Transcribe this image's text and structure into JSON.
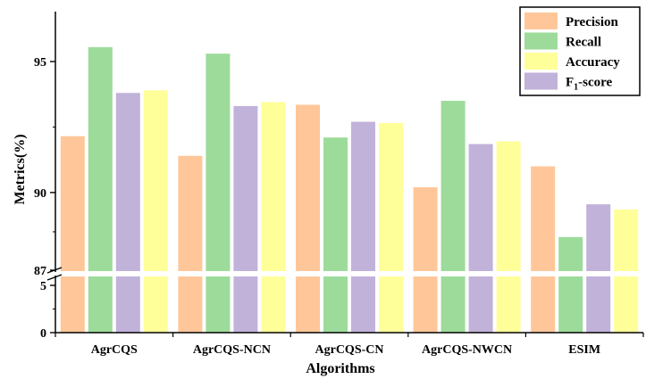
{
  "chart_data": {
    "type": "bar",
    "xlabel": "Algorithms",
    "ylabel": "Metrics(%)",
    "categories": [
      "AgrCQS",
      "AgrCQS-NCN",
      "AgrCQS-CN",
      "AgrCQS-NWCN",
      "ESIM"
    ],
    "series": [
      {
        "name": "Precision",
        "color": "#FFC799",
        "values": [
          92.15,
          91.4,
          93.35,
          90.2,
          91.0
        ]
      },
      {
        "name": "Recall",
        "color": "#9DDB9B",
        "values": [
          95.55,
          95.3,
          92.1,
          93.5,
          88.3
        ]
      },
      {
        "name": "F1-score",
        "name_main": "F",
        "name_sub": "1",
        "name_rest": "-score",
        "color": "#C1B2D9",
        "values": [
          93.8,
          93.3,
          92.7,
          91.85,
          89.55
        ]
      },
      {
        "name": "Accuracy",
        "color": "#FFFF99",
        "values": [
          93.9,
          93.45,
          92.65,
          91.95,
          89.35
        ]
      }
    ],
    "legend_order": [
      "Precision",
      "Recall",
      "Accuracy",
      "F1-score"
    ],
    "legend_position": "top-right",
    "y_axis_break": {
      "lower": [
        0,
        5
      ],
      "upper": [
        87,
        97
      ]
    },
    "ticks_lower": [
      "0",
      "5"
    ],
    "ticks_upper": [
      "87",
      "90",
      "95"
    ],
    "grid": false
  }
}
